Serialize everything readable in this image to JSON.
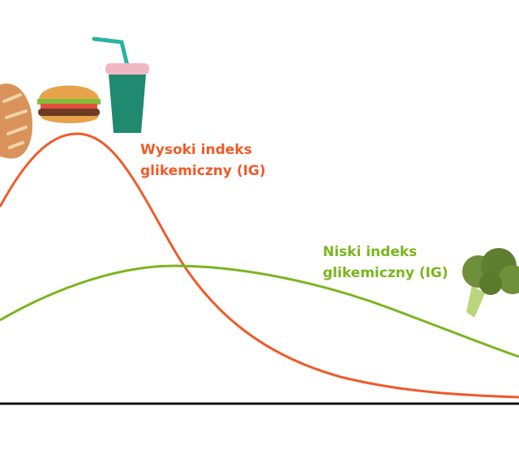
{
  "labels": {
    "high": [
      "Wysoki indeks",
      "glikemiczny (IG)"
    ],
    "low": [
      "Niski indeks",
      "glikemiczny (IG)"
    ]
  }
}
